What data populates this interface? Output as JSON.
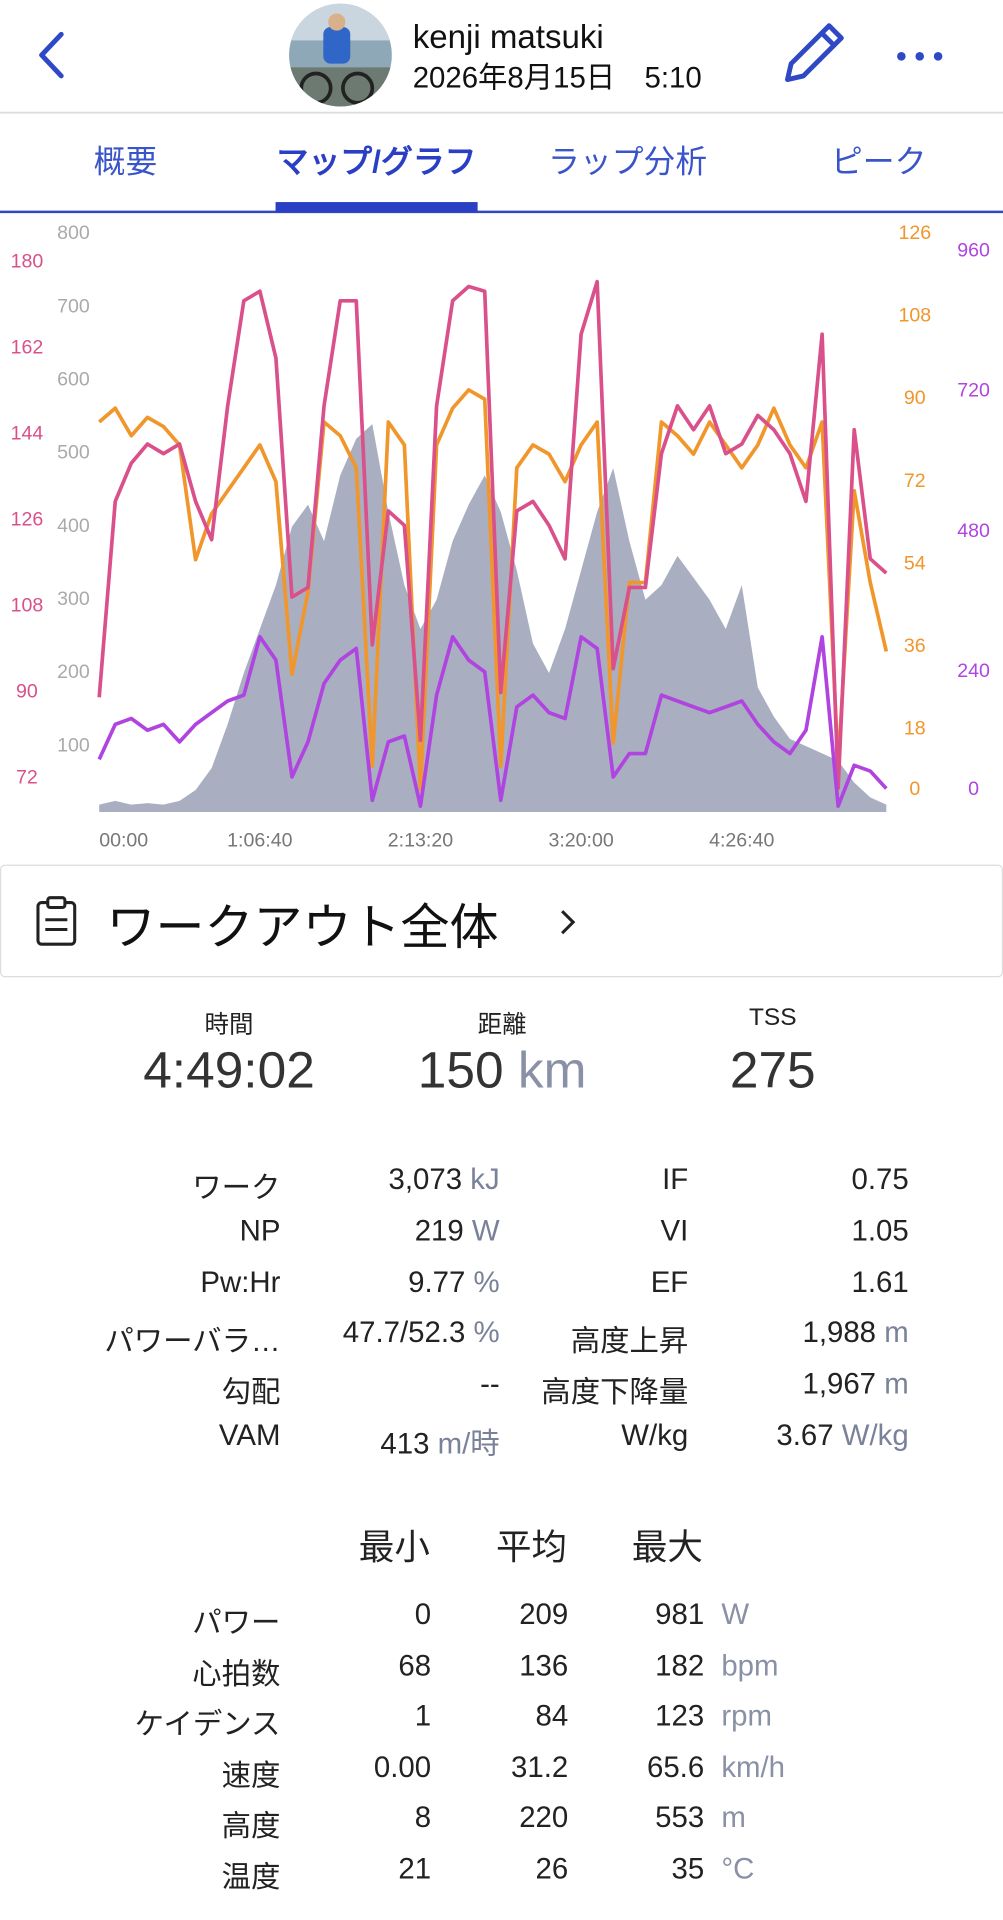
{
  "header": {
    "name": "kenji matsuki",
    "date_time": "2026年8月15日　5:10"
  },
  "tabs": [
    "概要",
    "マップ/グラフ",
    "ラップ分析",
    "ピーク"
  ],
  "active_tab": 1,
  "chart_data": {
    "type": "line",
    "x": [
      0,
      400,
      800,
      1200,
      1600,
      2000,
      2400,
      2800,
      3200,
      3600,
      4000,
      4400,
      4800,
      5200,
      5600,
      6000,
      6400,
      6800,
      7200,
      7600,
      8000,
      8400,
      8800,
      9200,
      9600,
      10000,
      10400,
      10800,
      11200,
      11600,
      12000,
      12400,
      12800,
      13200,
      13600,
      14000,
      14400,
      14800,
      15200,
      15600,
      16000,
      16400,
      16800,
      17200,
      17600,
      18000,
      18400,
      18800,
      19200,
      19600
    ],
    "xlim": [
      0,
      19700
    ],
    "xticks": [
      {
        "value": 0,
        "label": "00:00"
      },
      {
        "value": 4000,
        "label": "1:06:40"
      },
      {
        "value": 8000,
        "label": "2:13:20"
      },
      {
        "value": 12000,
        "label": "3:20:00"
      },
      {
        "value": 16000,
        "label": "4:26:40"
      }
    ],
    "series": [
      {
        "color": "#a9afc1",
        "area": true,
        "ylim": [
          10,
          800
        ],
        "yticks": [
          100,
          200,
          300,
          400,
          500,
          600,
          700,
          800
        ],
        "values": [
          20,
          25,
          20,
          22,
          20,
          25,
          40,
          70,
          130,
          200,
          260,
          320,
          400,
          430,
          380,
          470,
          520,
          540,
          420,
          320,
          260,
          300,
          380,
          430,
          470,
          420,
          340,
          240,
          200,
          260,
          340,
          420,
          480,
          380,
          300,
          320,
          360,
          330,
          300,
          260,
          320,
          180,
          140,
          110,
          100,
          90,
          80,
          50,
          30,
          20
        ]
      },
      {
        "color": "#f0962a",
        "ylim": [
          0,
          126
        ],
        "yticks": [
          0,
          18,
          36,
          54,
          72,
          90,
          108,
          126
        ],
        "values": [
          85,
          88,
          82,
          86,
          84,
          80,
          55,
          65,
          70,
          75,
          80,
          72,
          30,
          48,
          85,
          82,
          75,
          10,
          85,
          80,
          5,
          80,
          88,
          92,
          90,
          10,
          75,
          80,
          78,
          72,
          80,
          85,
          15,
          50,
          50,
          85,
          82,
          78,
          85,
          80,
          75,
          80,
          88,
          80,
          75,
          85,
          10,
          70,
          50,
          35
        ]
      },
      {
        "color": "#d9508a",
        "ylim": [
          65,
          186
        ],
        "yticks": [
          72,
          90,
          108,
          126,
          144,
          162,
          180
        ],
        "values": [
          89,
          130,
          138,
          142,
          140,
          142,
          130,
          122,
          150,
          172,
          174,
          160,
          110,
          112,
          150,
          172,
          172,
          100,
          128,
          125,
          80,
          150,
          172,
          175,
          174,
          90,
          128,
          130,
          125,
          118,
          165,
          176,
          95,
          112,
          112,
          140,
          150,
          145,
          150,
          140,
          142,
          148,
          145,
          140,
          130,
          165,
          70,
          145,
          118,
          115
        ]
      },
      {
        "color": "#b044e0",
        "ylim": [
          0,
          990
        ],
        "yticks": [
          0,
          240,
          480,
          720,
          960
        ],
        "values": [
          90,
          150,
          160,
          140,
          150,
          120,
          150,
          170,
          190,
          200,
          300,
          260,
          60,
          120,
          220,
          260,
          280,
          20,
          120,
          130,
          10,
          200,
          300,
          260,
          240,
          20,
          180,
          200,
          170,
          160,
          300,
          280,
          60,
          100,
          100,
          200,
          190,
          180,
          170,
          180,
          190,
          150,
          120,
          100,
          140,
          300,
          10,
          80,
          70,
          40
        ]
      }
    ]
  },
  "section_title": "ワークアウト全体",
  "summary": [
    {
      "label": "時間",
      "value": "4:49:02"
    },
    {
      "label": "距離",
      "value": 150,
      "unit": "km"
    },
    {
      "label": "TSS",
      "value": 275
    }
  ],
  "metrics": [
    [
      {
        "label": "ワーク",
        "value": "3,073",
        "unit": "kJ"
      },
      {
        "label": "IF",
        "value": 0.75
      }
    ],
    [
      {
        "label": "NP",
        "value": 219,
        "unit": "W"
      },
      {
        "label": "VI",
        "value": 1.05
      }
    ],
    [
      {
        "label": "Pw:Hr",
        "value": 9.77,
        "unit": "%"
      },
      {
        "label": "EF",
        "value": 1.61
      }
    ],
    [
      {
        "label": "パワーバラ…",
        "value": "47.7/52.3",
        "unit": "%"
      },
      {
        "label": "高度上昇",
        "value": "1,988",
        "unit": "m"
      }
    ],
    [
      {
        "label": "勾配",
        "value": "--"
      },
      {
        "label": "高度下降量",
        "value": "1,967",
        "unit": "m"
      }
    ],
    [
      {
        "label": "VAM",
        "value": 413,
        "unit": "m/時"
      },
      {
        "label": "W/kg",
        "value": 3.67,
        "unit": "W/kg"
      }
    ]
  ],
  "stats_table": {
    "columns": [
      "最小",
      "平均",
      "最大"
    ],
    "rows": [
      {
        "label": "パワー",
        "values": [
          0,
          209,
          981
        ],
        "unit": "W"
      },
      {
        "label": "心拍数",
        "values": [
          68,
          136,
          182
        ],
        "unit": "bpm"
      },
      {
        "label": "ケイデンス",
        "values": [
          1,
          84,
          123
        ],
        "unit": "rpm"
      },
      {
        "label": "速度",
        "values": [
          "0.00",
          31.2,
          65.6
        ],
        "unit": "km/h"
      },
      {
        "label": "高度",
        "values": [
          8,
          220,
          553
        ],
        "unit": "m"
      },
      {
        "label": "温度",
        "values": [
          21,
          26,
          35
        ],
        "unit": "°C"
      }
    ]
  }
}
